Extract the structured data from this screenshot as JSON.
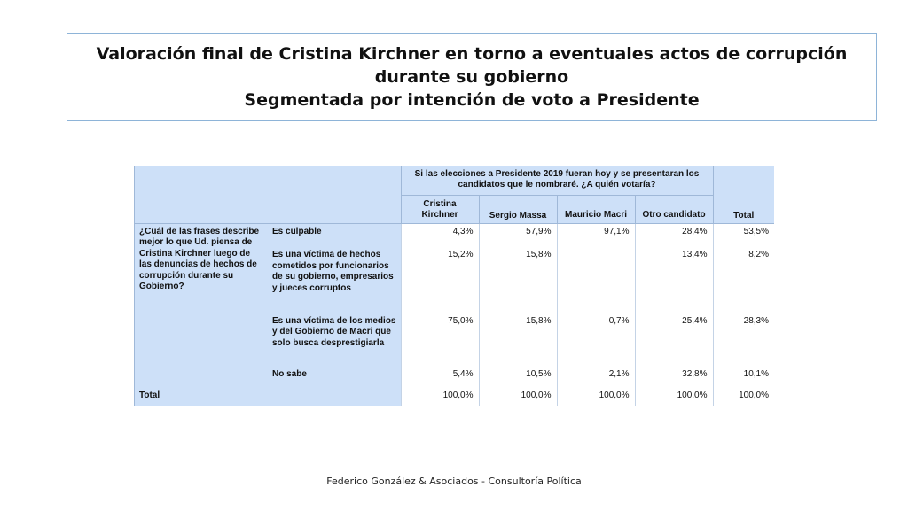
{
  "title": {
    "line1": "Valoración final de Cristina Kirchner en torno a eventuales actos de corrupción",
    "line2": "durante su gobierno",
    "line3": "Segmentada por intención de voto a Presidente"
  },
  "table": {
    "question_header": "Si las elecciones a Presidente 2019 fueran hoy y se presentaran los candidatos que le nombraré. ¿A quién votaría?",
    "columns": [
      "Cristina Kirchner",
      "Sergio Massa",
      "Mauricio Macri",
      "Otro candidato"
    ],
    "total_col": "Total",
    "row_question": "¿Cuál de las frases describe mejor lo que Ud. piensa de Cristina Kirchner luego de las denuncias de hechos de corrupción durante su Gobierno?",
    "rows": [
      {
        "label": "Es culpable",
        "values": [
          "4,3%",
          "57,9%",
          "97,1%",
          "28,4%",
          "53,5%"
        ]
      },
      {
        "label": "Es una víctima de hechos cometidos por funcionarios de su gobierno, empresarios y jueces corruptos",
        "values": [
          "15,2%",
          "15,8%",
          "",
          "13,4%",
          "8,2%"
        ]
      },
      {
        "label": "Es una víctima de los medios y del Gobierno de Macri que solo busca desprestigiarla",
        "values": [
          "75,0%",
          "15,8%",
          "0,7%",
          "25,4%",
          "28,3%"
        ]
      },
      {
        "label": "No sabe",
        "values": [
          "5,4%",
          "10,5%",
          "2,1%",
          "32,8%",
          "10,1%"
        ]
      }
    ],
    "total_row": {
      "label": "Total",
      "values": [
        "100,0%",
        "100,0%",
        "100,0%",
        "100,0%",
        "100,0%"
      ]
    }
  },
  "footer": "Federico González & Asociados - Consultoría Política"
}
